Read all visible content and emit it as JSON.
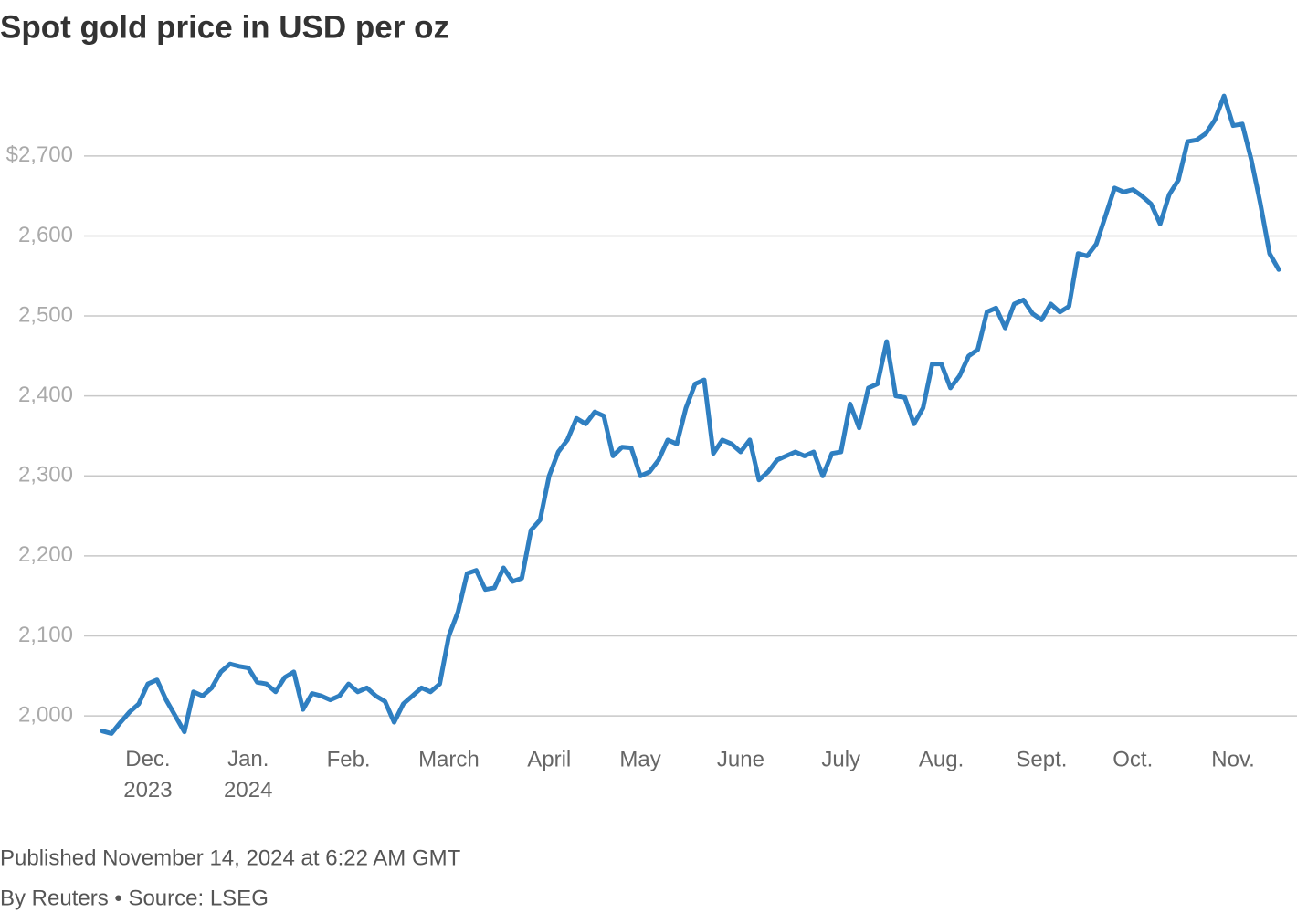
{
  "chart_data": {
    "type": "line",
    "title": "Spot gold price in USD per oz",
    "note": "Published November 14, 2024 at 6:22 AM GMT",
    "source": "By Reuters • Source: LSEG",
    "categories": [
      null,
      null,
      null,
      null,
      null,
      "Dec.\n2023",
      null,
      null,
      null,
      null,
      null,
      null,
      null,
      null,
      null,
      null,
      "Jan.\n2024",
      null,
      null,
      null,
      null,
      null,
      null,
      null,
      null,
      null,
      null,
      "Feb.",
      null,
      null,
      null,
      null,
      null,
      null,
      null,
      null,
      null,
      null,
      "March",
      null,
      null,
      null,
      null,
      null,
      null,
      null,
      null,
      null,
      null,
      "April",
      null,
      null,
      null,
      null,
      null,
      null,
      null,
      null,
      null,
      "May",
      null,
      null,
      null,
      null,
      null,
      null,
      null,
      null,
      null,
      null,
      "June",
      null,
      null,
      null,
      null,
      null,
      null,
      null,
      null,
      null,
      null,
      "July",
      null,
      null,
      null,
      null,
      null,
      null,
      null,
      null,
      null,
      null,
      "Aug.",
      null,
      null,
      null,
      null,
      null,
      null,
      null,
      null,
      null,
      null,
      "Sept.",
      null,
      null,
      null,
      null,
      null,
      null,
      null,
      null,
      null,
      "Oct.",
      null,
      null,
      null,
      null,
      null,
      null,
      null,
      null,
      null,
      null,
      "Nov.",
      null,
      null,
      null,
      null,
      null
    ],
    "series": [
      {
        "color": "#2f7fc1",
        "values": [
          1981,
          1978,
          1992,
          2005,
          2015,
          2040,
          2045,
          2020,
          2000,
          1980,
          2030,
          2025,
          2035,
          2055,
          2065,
          2062,
          2060,
          2042,
          2040,
          2030,
          2048,
          2055,
          2008,
          2028,
          2025,
          2020,
          2025,
          2040,
          2030,
          2035,
          2025,
          2018,
          1992,
          2015,
          2025,
          2035,
          2030,
          2040,
          2100,
          2130,
          2178,
          2182,
          2158,
          2160,
          2185,
          2168,
          2172,
          2232,
          2245,
          2300,
          2330,
          2345,
          2372,
          2365,
          2380,
          2375,
          2325,
          2336,
          2335,
          2300,
          2305,
          2320,
          2345,
          2340,
          2385,
          2415,
          2420,
          2328,
          2345,
          2340,
          2330,
          2345,
          2295,
          2305,
          2320,
          2325,
          2330,
          2325,
          2330,
          2300,
          2328,
          2330,
          2390,
          2360,
          2410,
          2415,
          2468,
          2400,
          2398,
          2365,
          2385,
          2440,
          2440,
          2410,
          2425,
          2450,
          2458,
          2505,
          2510,
          2485,
          2515,
          2520,
          2503,
          2495,
          2515,
          2505,
          2512,
          2578,
          2575,
          2590,
          2625,
          2660,
          2655,
          2658,
          2650,
          2640,
          2615,
          2652,
          2670,
          2718,
          2720,
          2728,
          2745,
          2775,
          2738,
          2740,
          2695,
          2640,
          2578,
          2558
        ]
      }
    ],
    "ylim": [
      1975,
      2790
    ],
    "yticks": [
      {
        "value": 2000,
        "label": "2,000"
      },
      {
        "value": 2100,
        "label": "2,100"
      },
      {
        "value": 2200,
        "label": "2,200"
      },
      {
        "value": 2300,
        "label": "2,300"
      },
      {
        "value": 2400,
        "label": "2,400"
      },
      {
        "value": 2500,
        "label": "2,500"
      },
      {
        "value": 2600,
        "label": "2,600"
      },
      {
        "value": 2700,
        "label": "$2,700"
      }
    ],
    "grid": true
  }
}
